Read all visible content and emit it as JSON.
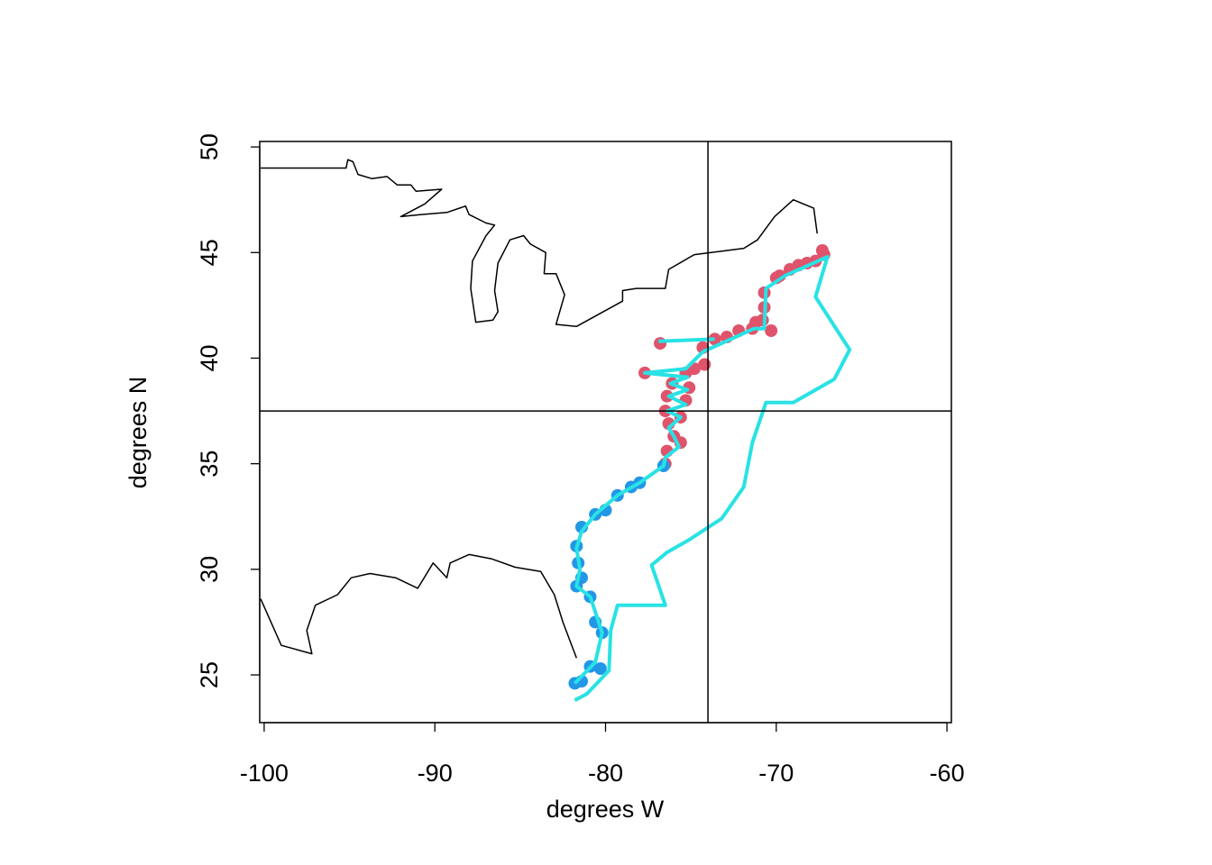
{
  "chart_data": {
    "type": "map",
    "xlabel": "degrees W",
    "ylabel": "degrees N",
    "xlim": [
      -100.26,
      -59.74
    ],
    "ylim": [
      22.74,
      50.26
    ],
    "xticks": [
      -100,
      -90,
      -80,
      -70,
      -60
    ],
    "yticks": [
      25,
      30,
      35,
      40,
      45,
      50
    ],
    "hlines": [
      37.5
    ],
    "vlines": [
      -74
    ],
    "series": [
      {
        "kind": "line",
        "color": "#000000",
        "x": [
          -100.2,
          -95.2,
          -95.1,
          -94.8,
          -94.5,
          -93.7,
          -92.8,
          -92.2,
          -91.4,
          -91.1,
          -89.6,
          -90.6,
          -92.0,
          -90.8,
          -89.3,
          -88.2,
          -88.0,
          -87.0,
          -86.5,
          -87.0,
          -87.8,
          -87.9,
          -87.6,
          -86.6,
          -86.3,
          -86.5,
          -86.3,
          -85.6,
          -84.8,
          -84.4,
          -83.5,
          -83.6,
          -82.9,
          -82.4,
          -82.9,
          -81.7,
          -79.0,
          -79.0,
          -78.2,
          -76.5,
          -76.3,
          -74.8,
          -71.9,
          -71.1,
          -70.1,
          -69.0,
          -67.8,
          -67.6,
          null,
          -100.2,
          -99.0,
          -97.2,
          -97.5,
          -97.0,
          -95.7,
          -94.9,
          -93.8,
          -92.3,
          -91.0,
          -90.1,
          -89.3,
          -89.1,
          -88.0,
          -86.7,
          -85.3,
          -83.8,
          -83.0,
          -82.5,
          -81.7
        ],
        "y": [
          49.0,
          49.0,
          49.4,
          49.3,
          48.7,
          48.5,
          48.6,
          48.2,
          48.2,
          47.9,
          48.0,
          47.3,
          46.7,
          46.8,
          46.9,
          47.2,
          46.8,
          46.4,
          46.3,
          45.8,
          44.6,
          43.3,
          41.7,
          41.8,
          42.2,
          43.2,
          44.5,
          45.6,
          45.8,
          45.4,
          45.0,
          44.0,
          44.0,
          43.0,
          41.6,
          41.5,
          42.7,
          43.2,
          43.3,
          43.3,
          44.2,
          44.9,
          45.2,
          45.6,
          46.7,
          47.5,
          47.1,
          45.9,
          null,
          28.6,
          26.4,
          26.0,
          27.1,
          28.3,
          28.8,
          29.6,
          29.8,
          29.6,
          29.1,
          30.3,
          29.6,
          30.3,
          30.7,
          30.5,
          30.1,
          29.9,
          28.8,
          27.5,
          25.8
        ]
      },
      {
        "kind": "points",
        "color": "#df536b",
        "x": [
          -67.3,
          -67.2,
          -67.7,
          -68.2,
          -68.7,
          -69.2,
          -69.8,
          -70.0,
          -70.7,
          -70.7,
          -70.8,
          -71.2,
          -70.3,
          -71.4,
          -72.2,
          -72.9,
          -73.6,
          -74.3,
          -74.2,
          -74.8,
          -75.3,
          -77.7,
          -76.8,
          -76.1,
          -75.1,
          -76.4,
          -75.3,
          -76.5,
          -75.6,
          -76.3,
          -76.0,
          -75.6,
          -76.4,
          -76.5
        ],
        "y": [
          45.1,
          44.9,
          44.6,
          44.5,
          44.4,
          44.2,
          43.9,
          43.8,
          43.1,
          42.4,
          41.8,
          41.7,
          41.3,
          41.4,
          41.3,
          41.0,
          40.9,
          40.5,
          39.7,
          39.5,
          39.3,
          39.3,
          40.7,
          38.8,
          38.6,
          38.2,
          38.0,
          37.5,
          37.2,
          36.9,
          36.3,
          36.0,
          35.6,
          35.0
        ]
      },
      {
        "kind": "points",
        "color": "#2297e6",
        "x": [
          -76.6,
          -78.0,
          -78.5,
          -79.3,
          -80.0,
          -80.6,
          -81.4,
          -81.7,
          -81.6,
          -81.4,
          -81.7,
          -80.9,
          -80.6,
          -80.2,
          -80.9,
          -80.3,
          -81.4,
          -81.8
        ],
        "y": [
          34.9,
          34.1,
          33.9,
          33.5,
          32.8,
          32.6,
          32.0,
          31.1,
          30.3,
          29.6,
          29.2,
          28.7,
          27.5,
          27.0,
          25.4,
          25.3,
          24.7,
          24.6
        ]
      },
      {
        "kind": "line",
        "color": "#28e2e5",
        "x": [
          -81.8,
          -81.1,
          -79.8,
          -79.7,
          -79.3,
          -76.5,
          -77.3,
          -76.4,
          -75.1,
          -73.2,
          -71.9,
          -71.4,
          -70.6,
          -69.0,
          -66.6,
          -65.7,
          -67.7,
          -67.0,
          -69.5,
          -70.6,
          -70.7,
          -71.3,
          -73.2,
          -74.3,
          -75.3,
          -77.7,
          -75.2,
          -76.2,
          -75.2,
          -76.3,
          -75.3,
          -76.4,
          -75.6,
          -76.3,
          -76.0,
          -75.7,
          -76.5,
          -76.6,
          -78.0,
          -79.3,
          -80.6,
          -81.4,
          -81.7,
          -81.5,
          -81.7,
          -80.9,
          -80.4,
          -80.2,
          -80.6,
          -81.2,
          -81.8,
          null,
          -76.9,
          -73.6
        ],
        "y": [
          23.8,
          24.1,
          25.2,
          27.1,
          28.3,
          28.3,
          30.2,
          30.8,
          31.4,
          32.4,
          33.9,
          36.0,
          37.9,
          37.9,
          39.0,
          40.4,
          42.9,
          44.8,
          43.9,
          43.3,
          41.4,
          41.4,
          40.7,
          40.3,
          39.5,
          39.3,
          39.1,
          38.8,
          38.5,
          38.2,
          37.8,
          37.5,
          37.2,
          36.7,
          36.3,
          35.8,
          35.3,
          34.9,
          34.1,
          33.5,
          32.6,
          31.8,
          31.0,
          30.0,
          29.2,
          28.7,
          27.5,
          27.0,
          25.6,
          25.1,
          24.6,
          null,
          40.8,
          40.9
        ]
      }
    ]
  }
}
